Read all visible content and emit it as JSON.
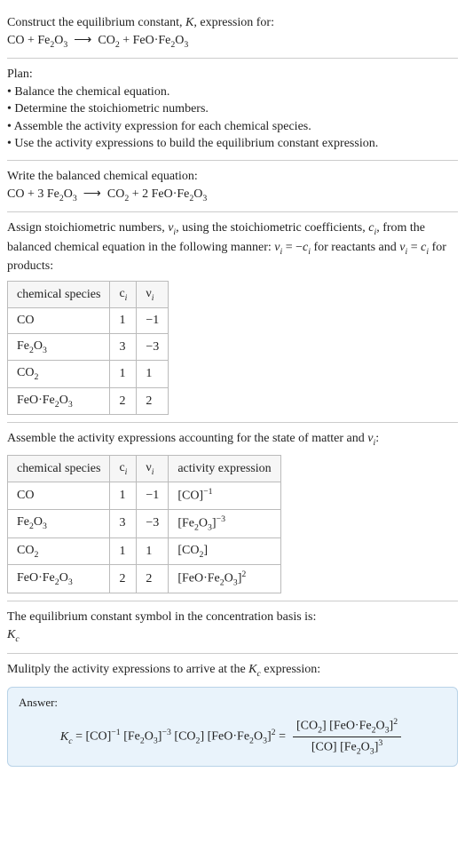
{
  "intro": {
    "line1": "Construct the equilibrium constant, ",
    "k": "K",
    "line1b": ", expression for:",
    "equation_html": "CO + Fe<span class='sub'>2</span>O<span class='sub'>3</span> &nbsp;⟶&nbsp; CO<span class='sub'>2</span> + FeO·Fe<span class='sub'>2</span>O<span class='sub'>3</span>"
  },
  "plan": {
    "heading": "Plan:",
    "items": [
      "Balance the chemical equation.",
      "Determine the stoichiometric numbers.",
      "Assemble the activity expression for each chemical species.",
      "Use the activity expressions to build the equilibrium constant expression."
    ]
  },
  "balanced": {
    "heading": "Write the balanced chemical equation:",
    "equation_html": "CO + 3 Fe<span class='sub'>2</span>O<span class='sub'>3</span> &nbsp;⟶&nbsp; CO<span class='sub'>2</span> + 2 FeO·Fe<span class='sub'>2</span>O<span class='sub'>3</span>"
  },
  "stoich": {
    "text_html": "Assign stoichiometric numbers, <span class='italic'>ν<span class='sub'>i</span></span>, using the stoichiometric coefficients, <span class='italic'>c<span class='sub'>i</span></span>, from the balanced chemical equation in the following manner: <span class='italic'>ν<span class='sub'>i</span></span> = −<span class='italic'>c<span class='sub'>i</span></span> for reactants and <span class='italic'>ν<span class='sub'>i</span></span> = <span class='italic'>c<span class='sub'>i</span></span> for products:",
    "headers": [
      "chemical species",
      "c<span class='sub italic'>i</span>",
      "ν<span class='sub italic'>i</span>"
    ],
    "rows": [
      [
        "CO",
        "1",
        "−1"
      ],
      [
        "Fe<span class='sub'>2</span>O<span class='sub'>3</span>",
        "3",
        "−3"
      ],
      [
        "CO<span class='sub'>2</span>",
        "1",
        "1"
      ],
      [
        "FeO·Fe<span class='sub'>2</span>O<span class='sub'>3</span>",
        "2",
        "2"
      ]
    ]
  },
  "activity": {
    "text_html": "Assemble the activity expressions accounting for the state of matter and <span class='italic'>ν<span class='sub'>i</span></span>:",
    "headers": [
      "chemical species",
      "c<span class='sub italic'>i</span>",
      "ν<span class='sub italic'>i</span>",
      "activity expression"
    ],
    "rows": [
      [
        "CO",
        "1",
        "−1",
        "[CO]<span class='sup'>−1</span>"
      ],
      [
        "Fe<span class='sub'>2</span>O<span class='sub'>3</span>",
        "3",
        "−3",
        "[Fe<span class='sub'>2</span>O<span class='sub'>3</span>]<span class='sup'>−3</span>"
      ],
      [
        "CO<span class='sub'>2</span>",
        "1",
        "1",
        "[CO<span class='sub'>2</span>]"
      ],
      [
        "FeO·Fe<span class='sub'>2</span>O<span class='sub'>3</span>",
        "2",
        "2",
        "[FeO·Fe<span class='sub'>2</span>O<span class='sub'>3</span>]<span class='sup'>2</span>"
      ]
    ]
  },
  "kcsymbol": {
    "text": "The equilibrium constant symbol in the concentration basis is:",
    "symbol_html": "<span class='italic'>K<span class='sub'>c</span></span>"
  },
  "multiply": {
    "text_html": "Mulitply the activity expressions to arrive at the <span class='italic'>K<span class='sub'>c</span></span> expression:"
  },
  "answer": {
    "label": "Answer:",
    "lhs_html": "<span class='italic'>K<span class='sub'>c</span></span> = [CO]<span class='sup'>−1</span> [Fe<span class='sub'>2</span>O<span class='sub'>3</span>]<span class='sup'>−3</span> [CO<span class='sub'>2</span>] [FeO·Fe<span class='sub'>2</span>O<span class='sub'>3</span>]<span class='sup'>2</span> =",
    "num_html": "[CO<span class='sub'>2</span>] [FeO·Fe<span class='sub'>2</span>O<span class='sub'>3</span>]<span class='sup'>2</span>",
    "den_html": "[CO] [Fe<span class='sub'>2</span>O<span class='sub'>3</span>]<span class='sup'>3</span>"
  }
}
